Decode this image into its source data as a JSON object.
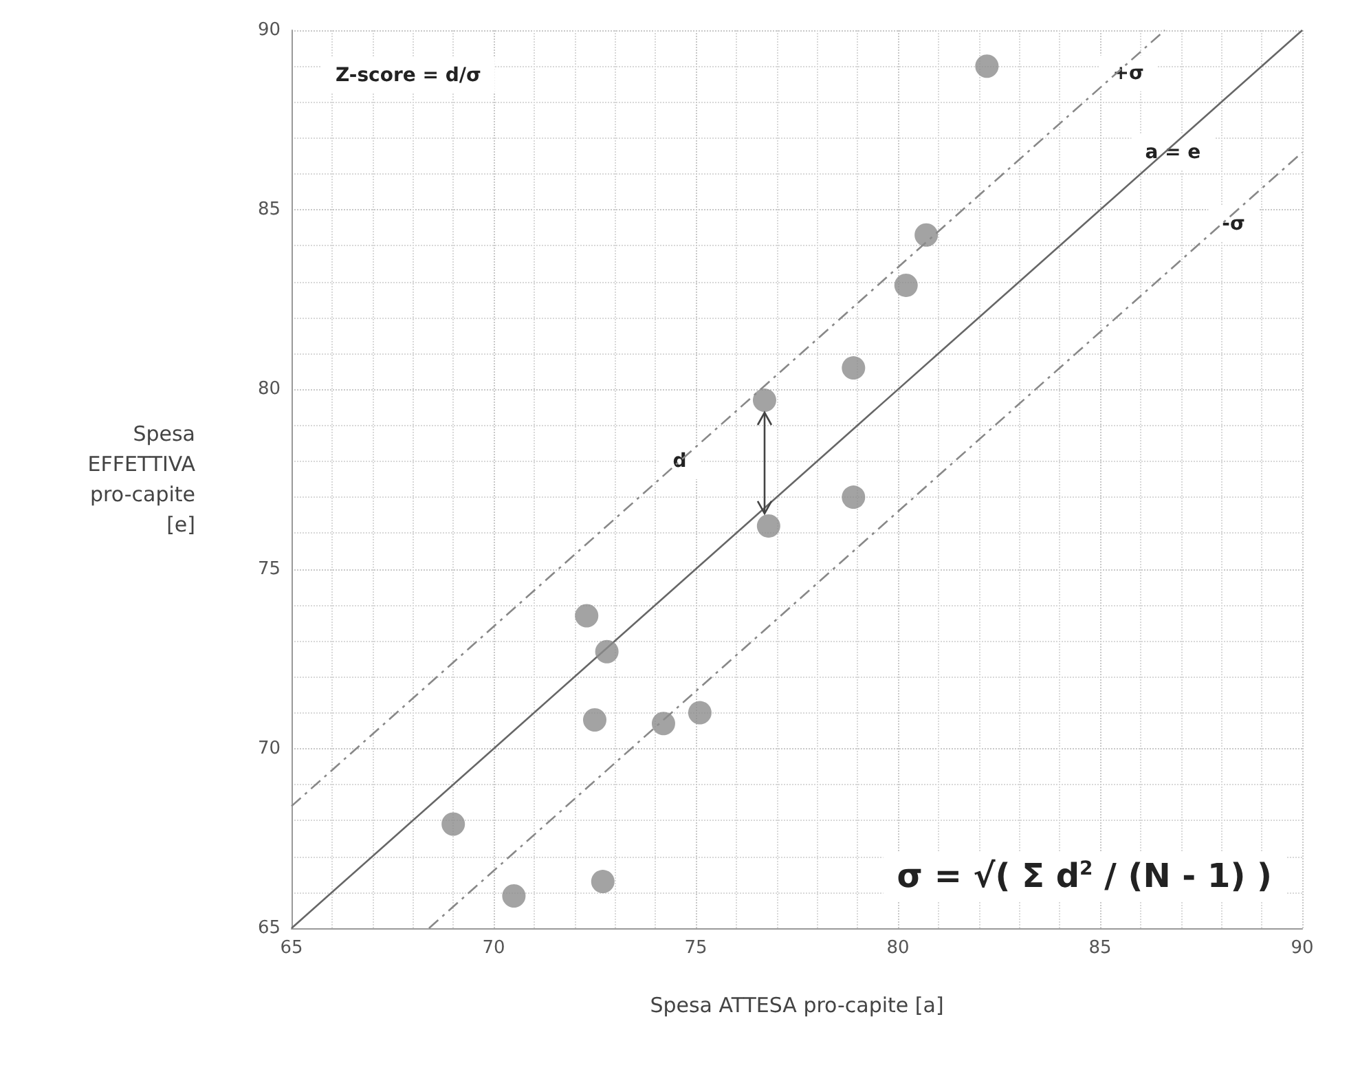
{
  "chart_data": {
    "type": "scatter",
    "xlabel": "Spesa ATTESA pro-capite [a]",
    "ylabel": "Spesa\nEFFETTIVA\npro-capite\n[e]",
    "xlim": [
      65,
      90
    ],
    "xticks": [
      65,
      70,
      75,
      80,
      85,
      90
    ],
    "ylim": [
      65,
      90
    ],
    "yticks": [
      65,
      70,
      75,
      80,
      85,
      90
    ],
    "grid": true,
    "marker": "circle",
    "series": [
      {
        "color": "#8c8c8c",
        "x": [
          82.2,
          80.7,
          80.2,
          78.9,
          76.7,
          76.8,
          78.9,
          72.3,
          72.8,
          72.5,
          74.2,
          75.1,
          69.0,
          70.5,
          72.7
        ],
        "values": [
          89.0,
          84.3,
          82.9,
          80.6,
          79.7,
          76.2,
          77.0,
          73.7,
          72.7,
          70.8,
          70.7,
          71.0,
          67.9,
          65.9,
          66.3
        ]
      },
      {
        "type": "line",
        "color": "#666666",
        "line_style": "solid",
        "marker": "none",
        "x": [
          65,
          90
        ],
        "values": [
          65,
          90
        ]
      },
      {
        "type": "line",
        "color": "#888888",
        "line_style": "dashed",
        "marker": "none",
        "x": [
          65,
          86.6
        ],
        "values": [
          68.4,
          90
        ]
      },
      {
        "type": "line",
        "color": "#888888",
        "line_style": "dashed",
        "marker": "none",
        "x": [
          68.4,
          90
        ],
        "values": [
          65,
          86.6
        ]
      }
    ],
    "annotations": [
      "Z-score = d/σ",
      "σ = √( Σ d$^{2}$ / (N - 1) )",
      {
        "text": "+σ",
        "x": 85.7,
        "y": 88.8
      },
      {
        "text": "a = e",
        "x": 86.8,
        "y": 86.6
      },
      {
        "text": "-σ",
        "x": 88.3,
        "y": 84.6
      },
      {
        "text": "d",
        "x": 74.6,
        "y": 78
      }
    ]
  }
}
